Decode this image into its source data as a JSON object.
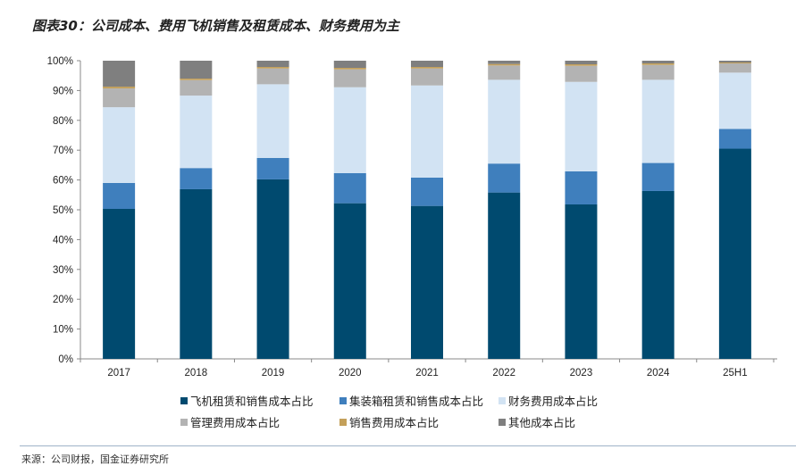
{
  "title": "图表30：公司成本、费用飞机销售及租赁成本、财务费用为主",
  "source": "来源：公司财报，国金证券研究所",
  "chart_data": {
    "type": "bar",
    "stacked": true,
    "categories": [
      "2017",
      "2018",
      "2019",
      "2020",
      "2021",
      "2022",
      "2023",
      "2024",
      "25H1"
    ],
    "ylim": [
      0,
      100
    ],
    "yticks": [
      "0%",
      "10%",
      "20%",
      "30%",
      "40%",
      "50%",
      "60%",
      "70%",
      "80%",
      "90%",
      "100%"
    ],
    "grid": false,
    "legend_position": "bottom",
    "series": [
      {
        "name": "飞机租赁和销售成本占比",
        "color": "#004a6f",
        "values": [
          50.3,
          56.9,
          60.2,
          52.2,
          51.3,
          55.8,
          51.8,
          56.3,
          70.5
        ]
      },
      {
        "name": "集装箱租赁和销售成本占比",
        "color": "#3f7fbd",
        "values": [
          8.7,
          7.1,
          7.2,
          10.1,
          9.5,
          9.7,
          11.1,
          9.4,
          6.6
        ]
      },
      {
        "name": "财务费用成本占比",
        "color": "#d2e3f3",
        "values": [
          25.4,
          24.3,
          24.7,
          28.8,
          30.9,
          28.1,
          30.0,
          27.9,
          18.9
        ]
      },
      {
        "name": "管理费用成本占比",
        "color": "#b3b3b3",
        "values": [
          6.3,
          5.2,
          5.3,
          6.0,
          5.7,
          4.8,
          5.4,
          5.0,
          3.1
        ]
      },
      {
        "name": "销售费用成本占比",
        "color": "#c4a05a",
        "values": [
          0.6,
          0.5,
          0.5,
          0.5,
          0.5,
          0.5,
          0.5,
          0.5,
          0.3
        ]
      },
      {
        "name": "其他成本占比",
        "color": "#7f7f7f",
        "values": [
          8.7,
          6.0,
          2.1,
          2.4,
          2.1,
          1.1,
          1.2,
          0.9,
          0.6
        ]
      }
    ]
  }
}
